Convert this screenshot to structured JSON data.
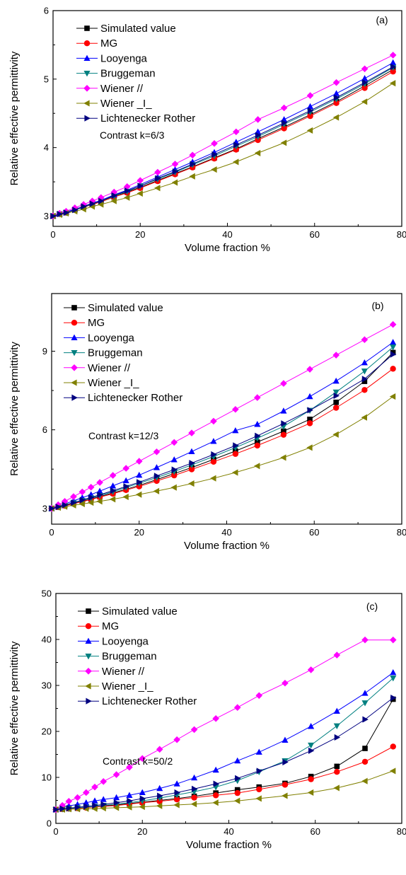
{
  "chart_data": [
    {
      "type": "line",
      "panel_label": "(a)",
      "annotation": "Contrast k=6/3",
      "xlabel": "Volume fraction %",
      "ylabel": "Relative effective permittivity",
      "xlim": [
        0,
        80
      ],
      "ylim": [
        2.85,
        6
      ],
      "xticks": [
        0,
        20,
        40,
        60,
        80
      ],
      "yticks": [
        3,
        4,
        5,
        6
      ],
      "legend_position": "top-left",
      "x": [
        0,
        1.5,
        3,
        5,
        7,
        9,
        11,
        14,
        17,
        20,
        24,
        28,
        32,
        37,
        42,
        47,
        53,
        59,
        65,
        71.5,
        78
      ],
      "series": [
        {
          "name": "Simulated value",
          "marker": "square",
          "color": "#000000",
          "values": [
            3.0,
            3.03,
            3.05,
            3.09,
            3.13,
            3.17,
            3.21,
            3.28,
            3.35,
            3.42,
            3.52,
            3.62,
            3.72,
            3.85,
            3.98,
            4.13,
            4.3,
            4.48,
            4.67,
            4.9,
            5.14
          ]
        },
        {
          "name": "MG",
          "marker": "circle",
          "color": "#ff0000",
          "values": [
            3.0,
            3.03,
            3.05,
            3.09,
            3.13,
            3.17,
            3.21,
            3.28,
            3.34,
            3.41,
            3.51,
            3.61,
            3.71,
            3.84,
            3.97,
            4.11,
            4.28,
            4.46,
            4.65,
            4.87,
            5.11
          ]
        },
        {
          "name": "Looyenga",
          "marker": "triangle-up",
          "color": "#0000ff",
          "values": [
            3.0,
            3.03,
            3.06,
            3.1,
            3.14,
            3.19,
            3.23,
            3.31,
            3.38,
            3.46,
            3.57,
            3.68,
            3.79,
            3.93,
            4.08,
            4.23,
            4.41,
            4.6,
            4.79,
            5.01,
            5.24
          ]
        },
        {
          "name": "Bruggeman",
          "marker": "triangle-down",
          "color": "#008080",
          "values": [
            3.0,
            3.03,
            3.05,
            3.09,
            3.13,
            3.18,
            3.22,
            3.29,
            3.36,
            3.44,
            3.54,
            3.64,
            3.75,
            3.88,
            4.02,
            4.16,
            4.34,
            4.52,
            4.71,
            4.93,
            5.17
          ]
        },
        {
          "name": "Wiener //",
          "marker": "diamond",
          "color": "#ff00ff",
          "values": [
            3.0,
            3.04,
            3.07,
            3.12,
            3.17,
            3.22,
            3.27,
            3.35,
            3.43,
            3.52,
            3.64,
            3.76,
            3.89,
            4.06,
            4.23,
            4.41,
            4.58,
            4.76,
            4.95,
            5.15,
            5.35
          ]
        },
        {
          "name": "Wiener _I_",
          "marker": "triangle-left",
          "color": "#808000",
          "values": [
            3.0,
            3.02,
            3.04,
            3.07,
            3.1,
            3.14,
            3.17,
            3.22,
            3.27,
            3.33,
            3.41,
            3.49,
            3.58,
            3.68,
            3.79,
            3.92,
            4.07,
            4.25,
            4.44,
            4.67,
            4.94
          ]
        },
        {
          "name": "Lichtenecker Rother",
          "marker": "triangle-right",
          "color": "#000080",
          "values": [
            3.0,
            3.03,
            3.05,
            3.09,
            3.14,
            3.18,
            3.22,
            3.3,
            3.37,
            3.44,
            3.55,
            3.65,
            3.76,
            3.9,
            4.04,
            4.18,
            4.36,
            4.54,
            4.73,
            4.95,
            5.18
          ]
        }
      ]
    },
    {
      "type": "line",
      "panel_label": "(b)",
      "annotation": "Contrast k=12/3",
      "xlabel": "Volume fraction %",
      "ylabel": "Relative effective permittivity",
      "xlim": [
        0,
        80
      ],
      "ylim": [
        2.4,
        11.2
      ],
      "xticks": [
        0,
        20,
        40,
        60,
        80
      ],
      "yticks": [
        3,
        6,
        9
      ],
      "legend_position": "top-left",
      "x": [
        0,
        1.5,
        3,
        5,
        7,
        9,
        11,
        14,
        17,
        20,
        24,
        28,
        32,
        37,
        42,
        47,
        53,
        59,
        65,
        71.5,
        78
      ],
      "series": [
        {
          "name": "Simulated value",
          "marker": "square",
          "color": "#000000",
          "values": [
            3.0,
            3.05,
            3.11,
            3.19,
            3.27,
            3.36,
            3.45,
            3.59,
            3.73,
            3.88,
            4.1,
            4.33,
            4.56,
            4.87,
            5.19,
            5.53,
            5.95,
            6.4,
            7.05,
            7.85,
            8.95
          ]
        },
        {
          "name": "MG",
          "marker": "circle",
          "color": "#ff0000",
          "values": [
            3.0,
            3.05,
            3.1,
            3.18,
            3.26,
            3.34,
            3.43,
            3.56,
            3.7,
            3.84,
            4.05,
            4.26,
            4.49,
            4.78,
            5.08,
            5.4,
            5.81,
            6.25,
            6.84,
            7.52,
            8.33
          ]
        },
        {
          "name": "Looyenga",
          "marker": "triangle-up",
          "color": "#0000ff",
          "values": [
            3.0,
            3.09,
            3.17,
            3.29,
            3.41,
            3.53,
            3.66,
            3.86,
            4.06,
            4.27,
            4.56,
            4.86,
            5.17,
            5.56,
            5.97,
            6.21,
            6.72,
            7.27,
            7.86,
            8.56,
            9.34
          ]
        },
        {
          "name": "Bruggeman",
          "marker": "triangle-down",
          "color": "#008080",
          "values": [
            3.0,
            3.06,
            3.12,
            3.21,
            3.3,
            3.4,
            3.49,
            3.64,
            3.8,
            3.96,
            4.18,
            4.41,
            4.66,
            4.98,
            5.32,
            5.68,
            6.13,
            6.74,
            7.44,
            8.24,
            9.16
          ]
        },
        {
          "name": "Wiener //",
          "marker": "diamond",
          "color": "#ff00ff",
          "values": [
            3.0,
            3.14,
            3.27,
            3.45,
            3.63,
            3.81,
            3.99,
            4.26,
            4.53,
            4.8,
            5.16,
            5.52,
            5.88,
            6.33,
            6.78,
            7.23,
            7.77,
            8.31,
            8.85,
            9.44,
            10.02
          ]
        },
        {
          "name": "Wiener _I_",
          "marker": "triangle-left",
          "color": "#808000",
          "values": [
            3.0,
            3.03,
            3.07,
            3.12,
            3.17,
            3.22,
            3.27,
            3.35,
            3.44,
            3.53,
            3.66,
            3.8,
            3.95,
            4.15,
            4.37,
            4.62,
            4.94,
            5.32,
            5.82,
            6.47,
            7.27
          ]
        },
        {
          "name": "Lichtenecker Rother",
          "marker": "triangle-right",
          "color": "#000080",
          "values": [
            3.0,
            3.06,
            3.13,
            3.22,
            3.32,
            3.42,
            3.52,
            3.68,
            3.84,
            4.0,
            4.24,
            4.48,
            4.73,
            5.06,
            5.4,
            5.77,
            6.24,
            6.75,
            7.3,
            7.94,
            8.88
          ]
        }
      ]
    },
    {
      "type": "line",
      "panel_label": "(c)",
      "annotation": "Contrast k=50/2",
      "xlabel": "Volume fraction %",
      "ylabel": "Relative effective permittivity",
      "xlim": [
        0,
        80
      ],
      "ylim": [
        0,
        50
      ],
      "xticks": [
        0,
        20,
        40,
        60,
        80
      ],
      "yticks": [
        0,
        10,
        20,
        30,
        40,
        50
      ],
      "legend_position": "top-left",
      "x": [
        0,
        1.5,
        3,
        5,
        7,
        9,
        11,
        14,
        17,
        20,
        24,
        28,
        32,
        37,
        42,
        47,
        53,
        59,
        65,
        71.5,
        78
      ],
      "series": [
        {
          "name": "Simulated value",
          "marker": "square",
          "color": "#000000",
          "values": [
            3.0,
            3.1,
            3.2,
            3.3,
            3.5,
            3.6,
            3.8,
            4.0,
            4.3,
            4.6,
            5.0,
            5.4,
            5.9,
            6.6,
            7.3,
            7.9,
            8.7,
            10.2,
            12.4,
            16.3,
            27.0
          ]
        },
        {
          "name": "MG",
          "marker": "circle",
          "color": "#ff0000",
          "values": [
            3.0,
            3.1,
            3.2,
            3.3,
            3.4,
            3.6,
            3.7,
            3.9,
            4.2,
            4.5,
            4.8,
            5.2,
            5.6,
            6.1,
            6.6,
            7.4,
            8.4,
            9.6,
            11.2,
            13.4,
            16.7
          ]
        },
        {
          "name": "Looyenga",
          "marker": "triangle-up",
          "color": "#0000ff",
          "values": [
            3.0,
            3.4,
            3.8,
            4.1,
            4.5,
            4.9,
            5.2,
            5.6,
            6.1,
            6.7,
            7.6,
            8.6,
            9.9,
            11.6,
            13.6,
            15.5,
            18.1,
            21.1,
            24.4,
            28.3,
            32.8
          ]
        },
        {
          "name": "Bruggeman",
          "marker": "triangle-down",
          "color": "#008080",
          "values": [
            3.0,
            3.1,
            3.2,
            3.4,
            3.5,
            3.7,
            3.9,
            4.2,
            4.5,
            4.9,
            5.5,
            6.2,
            6.9,
            7.9,
            9.3,
            11.2,
            13.6,
            17.0,
            21.2,
            26.2,
            31.6
          ]
        },
        {
          "name": "Wiener //",
          "marker": "diamond",
          "color": "#ff00ff",
          "values": [
            3.0,
            3.9,
            4.8,
            5.6,
            6.7,
            7.9,
            9.1,
            10.6,
            12.2,
            14.1,
            16.1,
            18.2,
            20.4,
            22.8,
            25.2,
            27.8,
            30.5,
            33.4,
            36.6,
            39.9,
            39.9
          ]
        },
        {
          "name": "Wiener _I_",
          "marker": "triangle-left",
          "color": "#808000",
          "values": [
            3.0,
            3.0,
            3.1,
            3.1,
            3.2,
            3.2,
            3.3,
            3.4,
            3.5,
            3.6,
            3.8,
            4.0,
            4.2,
            4.5,
            4.9,
            5.4,
            6.0,
            6.7,
            7.7,
            9.2,
            11.4
          ]
        },
        {
          "name": "Lichtenecker Rother",
          "marker": "triangle-right",
          "color": "#000080",
          "values": [
            3.0,
            3.2,
            3.3,
            3.5,
            3.7,
            3.9,
            4.1,
            4.5,
            4.9,
            5.4,
            6.0,
            6.7,
            7.5,
            8.6,
            9.8,
            11.4,
            13.3,
            15.8,
            18.7,
            22.6,
            27.3
          ]
        }
      ]
    }
  ]
}
